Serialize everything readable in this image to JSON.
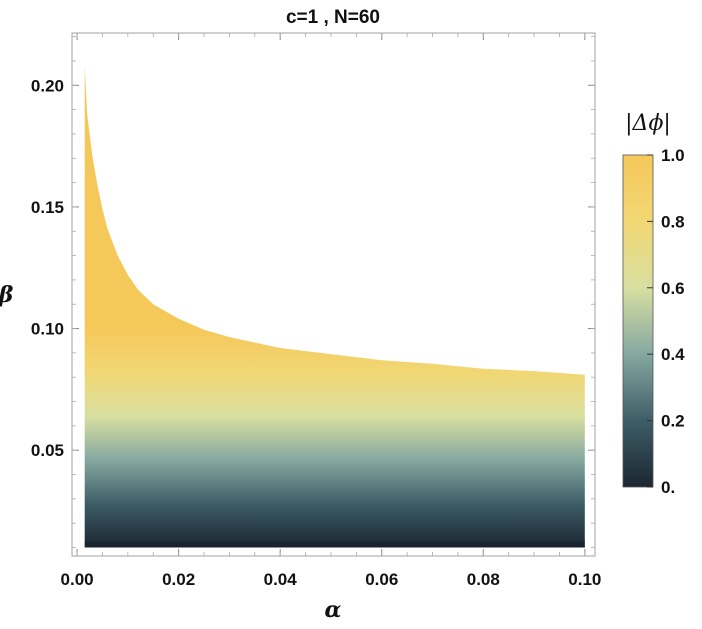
{
  "chart_data": {
    "type": "heatmap",
    "title": "c=1 , N=60",
    "xlabel": "α",
    "ylabel": "β",
    "xlim": [
      -0.001,
      0.102
    ],
    "ylim": [
      0.0065,
      0.2215
    ],
    "x_ticks": [
      {
        "value": 0.0,
        "label": "0.00"
      },
      {
        "value": 0.02,
        "label": "0.02"
      },
      {
        "value": 0.04,
        "label": "0.04"
      },
      {
        "value": 0.06,
        "label": "0.06"
      },
      {
        "value": 0.08,
        "label": "0.08"
      },
      {
        "value": 0.1,
        "label": "0.10"
      }
    ],
    "y_ticks": [
      {
        "value": 0.05,
        "label": "0.05"
      },
      {
        "value": 0.1,
        "label": "0.10"
      },
      {
        "value": 0.15,
        "label": "0.15"
      },
      {
        "value": 0.2,
        "label": "0.20"
      }
    ],
    "upper_boundary": {
      "alpha": [
        0.0015,
        0.002,
        0.003,
        0.004,
        0.005,
        0.006,
        0.008,
        0.01,
        0.012,
        0.015,
        0.02,
        0.025,
        0.03,
        0.04,
        0.05,
        0.06,
        0.07,
        0.08,
        0.09,
        0.1
      ],
      "beta": [
        0.208,
        0.188,
        0.171,
        0.159,
        0.149,
        0.141,
        0.13,
        0.122,
        0.116,
        0.11,
        0.104,
        0.0995,
        0.0965,
        0.092,
        0.0895,
        0.087,
        0.0855,
        0.0835,
        0.0825,
        0.081
      ]
    },
    "lower_boundary": {
      "alpha": [
        0.0015,
        0.1
      ],
      "beta": [
        0.01,
        0.01
      ]
    },
    "dark_ridge_beta": 0.0125,
    "colorbar": {
      "label": "|Δϕ|",
      "min": 0,
      "max": 1,
      "ticks": [
        {
          "value": 0.0,
          "label": "0."
        },
        {
          "value": 0.2,
          "label": "0.2"
        },
        {
          "value": 0.4,
          "label": "0.4"
        },
        {
          "value": 0.6,
          "label": "0.6"
        },
        {
          "value": 0.8,
          "label": "0.8"
        },
        {
          "value": 1.0,
          "label": "1.0"
        }
      ],
      "colors": [
        "#1c2632",
        "#3d5e67",
        "#85a8a0",
        "#d8dfa0",
        "#f2d774",
        "#f5c85a"
      ]
    },
    "grid": false,
    "legend_placement": "right"
  }
}
